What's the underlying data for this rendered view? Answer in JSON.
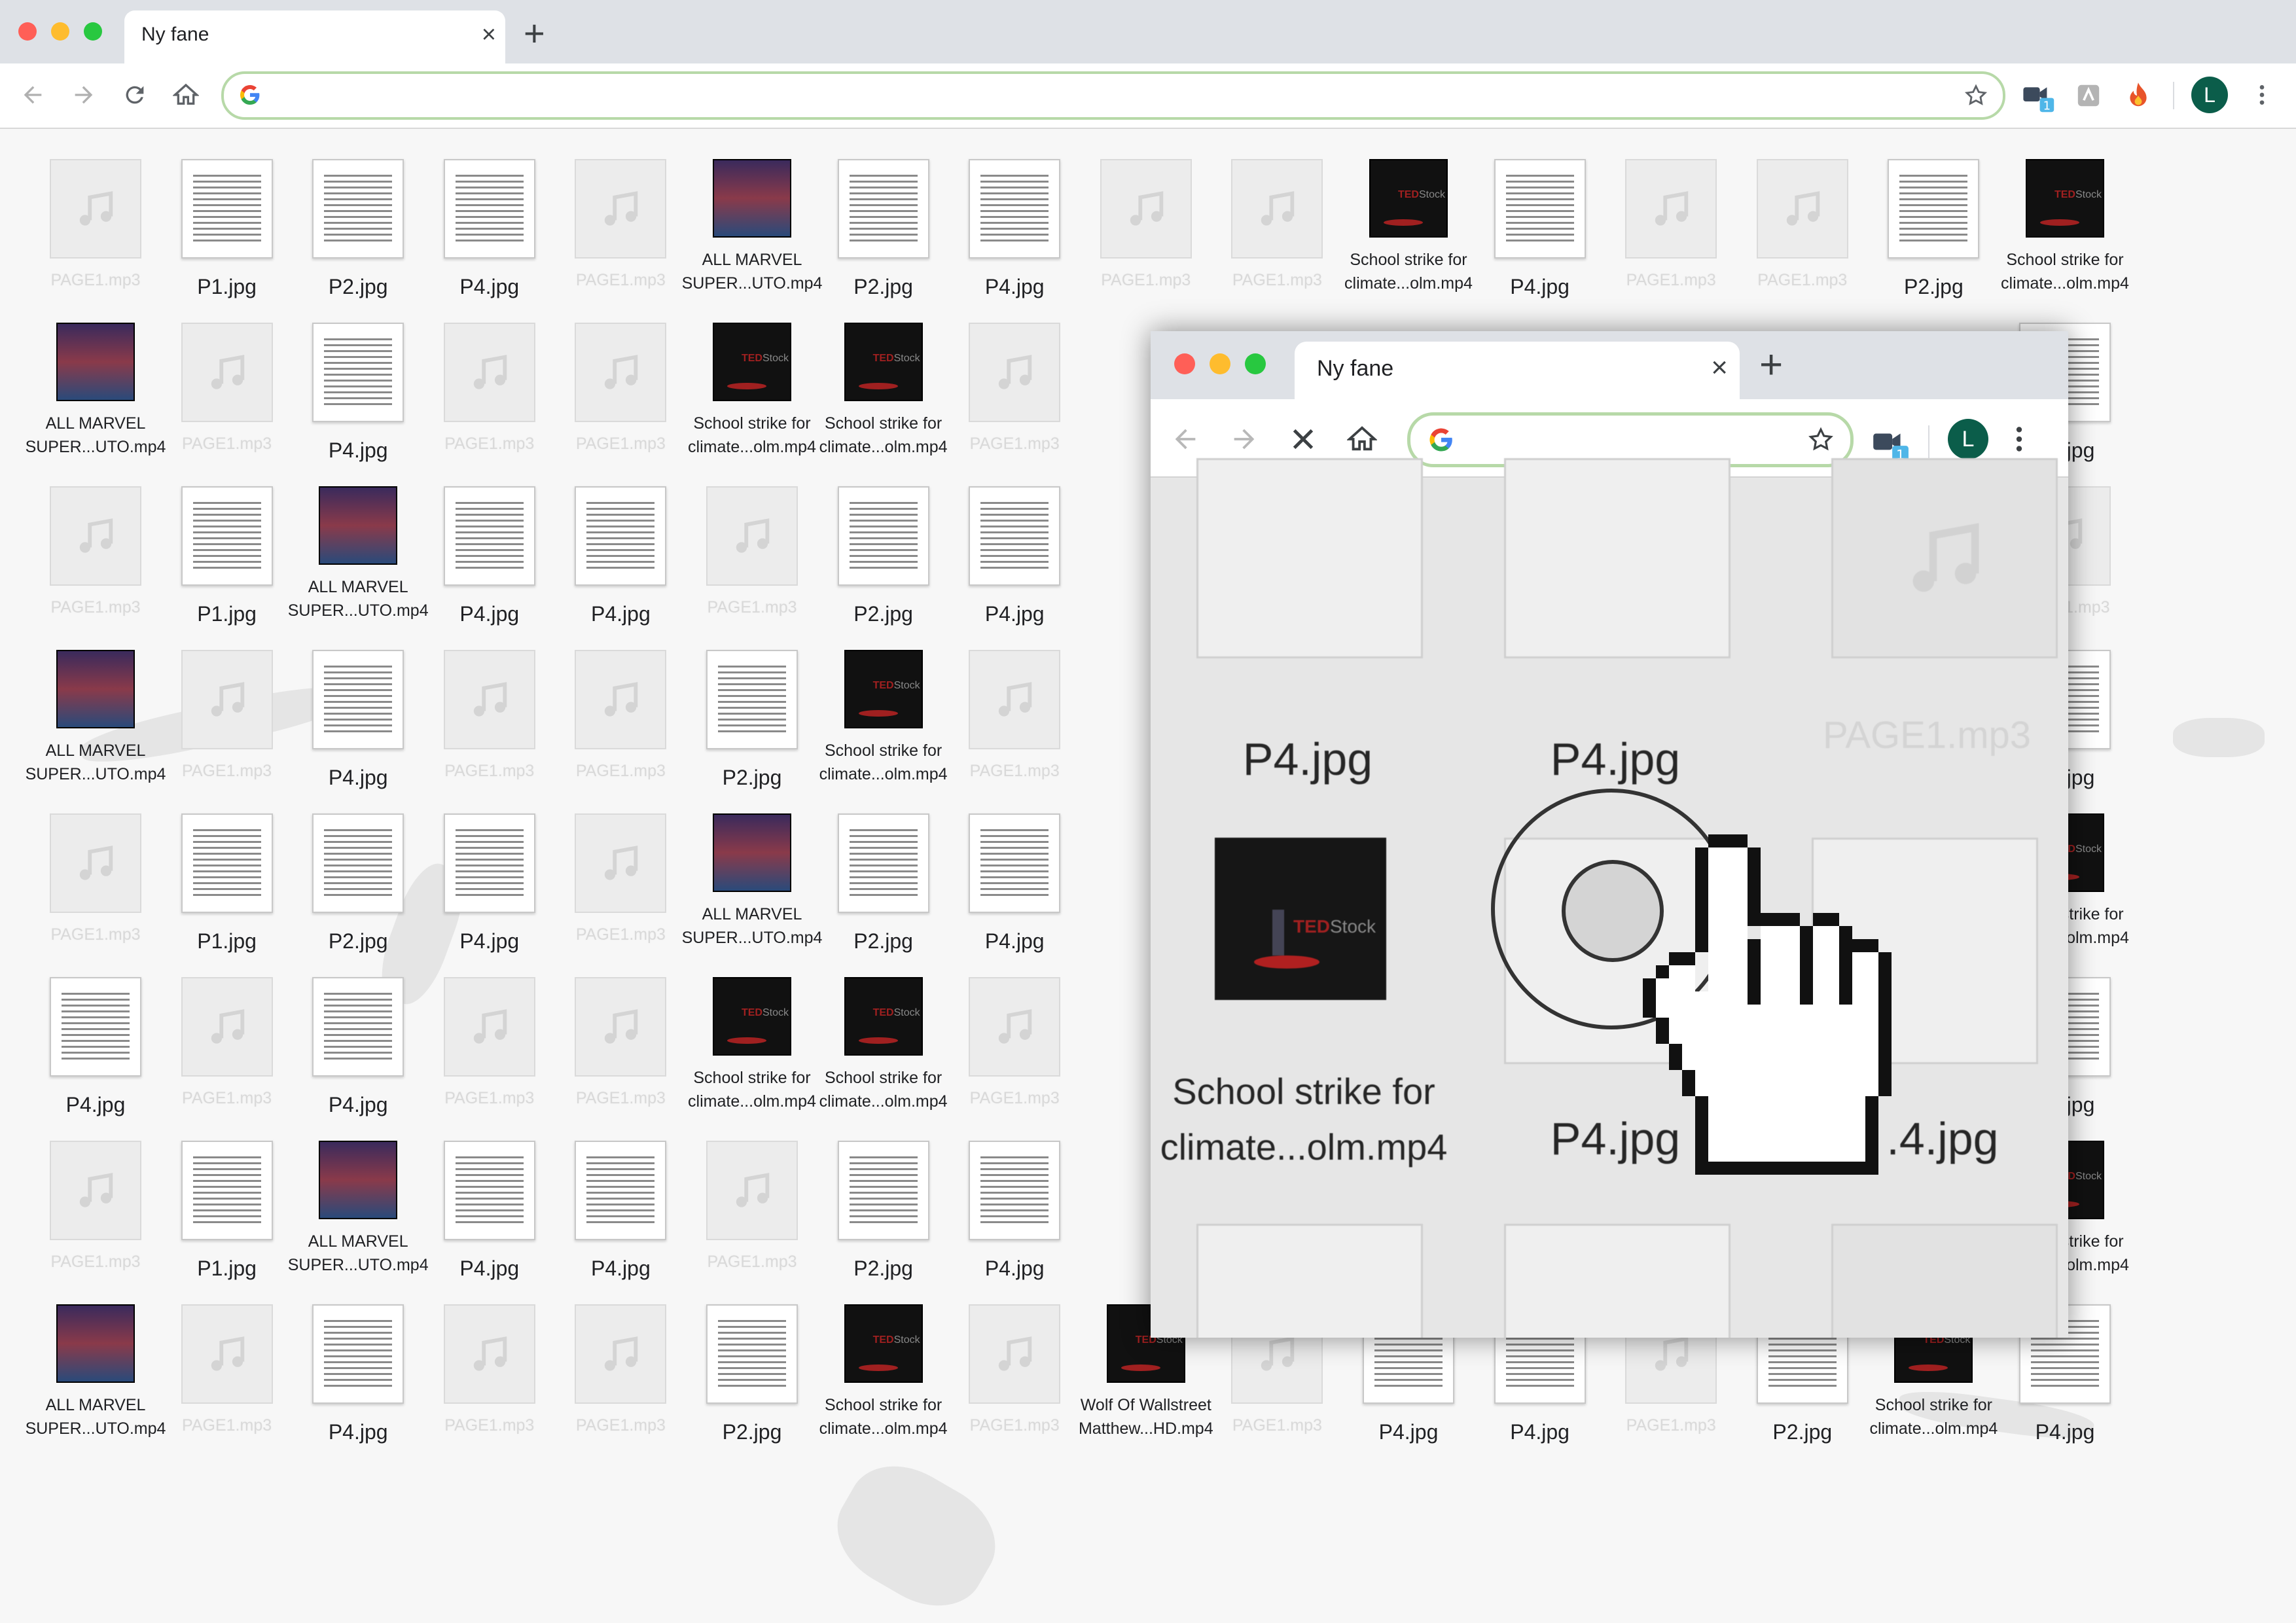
{
  "browser": {
    "tab_title": "Ny fane",
    "close_glyph": "×",
    "newtab_glyph": "+",
    "avatar_letter": "L",
    "extension_badge": "1",
    "icons": [
      "back-icon",
      "forward-icon",
      "reload-icon",
      "home-icon",
      "google-icon",
      "star-icon",
      "meet-icon",
      "extension-icon",
      "fire-icon",
      "menu-icon"
    ]
  },
  "inner_browser": {
    "tab_title": "Ny fane",
    "close_glyph": "×",
    "newtab_glyph": "+",
    "avatar_letter": "L",
    "extension_badge": "1",
    "labels": {
      "p4a": "P4.jpg",
      "p4b": "P4.jpg",
      "page1": "PAGE1.mp3",
      "school_l1": "School strike for",
      "school_l2": "climate...olm.mp4",
      "p4c": "P4.jpg",
      "p4d": ".4.jpg"
    }
  },
  "desktop": {
    "rows": [
      [
        "PAGE1.mp3",
        "P1.jpg",
        "P2.jpg",
        "P4.jpg",
        "PAGE1.mp3",
        "ALL MARVEL|SUPER...UTO.mp4",
        "P2.jpg",
        "P4.jpg",
        "PAGE1.mp3",
        "PAGE1.mp3",
        "School strike for|climate...olm.mp4",
        "P4.jpg",
        "PAGE1.mp3",
        "PAGE1.mp3",
        "P2.jpg",
        "School strike for|climate...olm.mp4"
      ],
      [
        "ALL MARVEL|SUPER...UTO.mp4",
        "PAGE1.mp3",
        "P4.jpg",
        "PAGE1.mp3",
        "PAGE1.mp3",
        "School strike for|climate...olm.mp4",
        "School strike for|climate...olm.mp4",
        "PAGE1.mp3",
        "",
        "",
        "",
        "",
        "",
        "",
        "",
        "P4.jpg"
      ],
      [
        "PAGE1.mp3",
        "P1.jpg",
        "ALL MARVEL|SUPER...UTO.mp4",
        "P4.jpg",
        "P4.jpg",
        "PAGE1.mp3",
        "P2.jpg",
        "P4.jpg",
        "",
        "",
        "",
        "",
        "",
        "",
        "",
        "PAGE1.mp3"
      ],
      [
        "ALL MARVEL|SUPER...UTO.mp4",
        "PAGE1.mp3",
        "P4.jpg",
        "PAGE1.mp3",
        "PAGE1.mp3",
        "P2.jpg",
        "School strike for|climate...olm.mp4",
        "PAGE1.mp3",
        "",
        "",
        "",
        "",
        "",
        "",
        "",
        "P4.jpg"
      ],
      [
        "PAGE1.mp3",
        "P1.jpg",
        "P2.jpg",
        "P4.jpg",
        "PAGE1.mp3",
        "ALL MARVEL|SUPER...UTO.mp4",
        "P2.jpg",
        "P4.jpg",
        "",
        "",
        "",
        "",
        "",
        "",
        "",
        "School strike for|climate...olm.mp4"
      ],
      [
        "P4.jpg",
        "PAGE1.mp3",
        "P4.jpg",
        "PAGE1.mp3",
        "PAGE1.mp3",
        "School strike for|climate...olm.mp4",
        "School strike for|climate...olm.mp4",
        "PAGE1.mp3",
        "",
        "",
        "",
        "",
        "",
        "",
        "",
        "P4.jpg"
      ],
      [
        "PAGE1.mp3",
        "P1.jpg",
        "ALL MARVEL|SUPER...UTO.mp4",
        "P4.jpg",
        "P4.jpg",
        "PAGE1.mp3",
        "P2.jpg",
        "P4.jpg",
        "",
        "",
        "",
        "",
        "",
        "",
        "",
        "School strike for|climate...olm.mp4"
      ],
      [
        "ALL MARVEL|SUPER...UTO.mp4",
        "PAGE1.mp3",
        "P4.jpg",
        "PAGE1.mp3",
        "PAGE1.mp3",
        "P2.jpg",
        "School strike for|climate...olm.mp4",
        "PAGE1.mp3",
        "Wolf Of Wallstreet|Matthew...HD.mp4",
        "PAGE1.mp3",
        "P4.jpg",
        "P4.jpg",
        "PAGE1.mp3",
        "P2.jpg",
        "School strike for|climate...olm.mp4",
        "P4.jpg"
      ]
    ]
  }
}
